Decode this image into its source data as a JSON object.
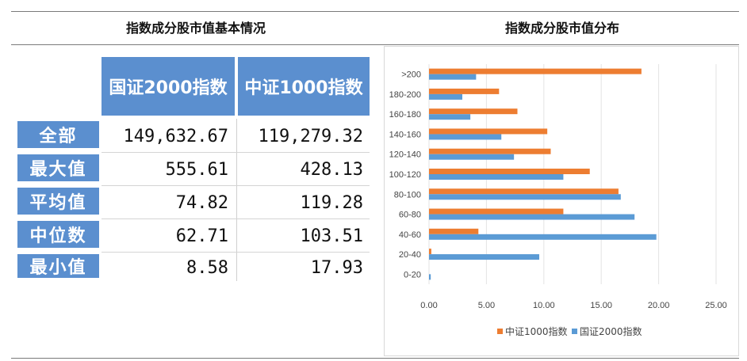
{
  "left_section": {
    "heading": "指数成分股市值基本情况",
    "columns": [
      "国证2000指数",
      "中证1000指数"
    ],
    "rows": [
      {
        "label": "全部",
        "values": [
          "149,632.67",
          "119,279.32"
        ]
      },
      {
        "label": "最大值",
        "values": [
          "555.61",
          "428.13"
        ]
      },
      {
        "label": "平均值",
        "values": [
          "74.82",
          "119.28"
        ]
      },
      {
        "label": "中位数",
        "values": [
          "62.71",
          "103.51"
        ]
      },
      {
        "label": "最小值",
        "values": [
          "8.58",
          "17.93"
        ]
      }
    ]
  },
  "right_section": {
    "heading": "指数成分股市值分布"
  },
  "chart_data": {
    "type": "bar",
    "orientation": "horizontal",
    "categories": [
      "0-20",
      "20-40",
      "40-60",
      "60-80",
      "80-100",
      "100-120",
      "120-140",
      "140-160",
      "160-180",
      "180-200",
      ">200"
    ],
    "series": [
      {
        "name": "中证1000指数",
        "color": "#ed7d31",
        "values": [
          0.0,
          0.2,
          4.3,
          11.7,
          16.5,
          14.0,
          10.6,
          10.3,
          7.7,
          6.1,
          18.5
        ]
      },
      {
        "name": "国证2000指数",
        "color": "#5b9bd5",
        "values": [
          0.15,
          9.6,
          19.8,
          17.9,
          16.7,
          11.7,
          7.4,
          6.3,
          3.6,
          2.9,
          4.1
        ]
      }
    ],
    "xlim": [
      0,
      25
    ],
    "xticks": [
      "0.00",
      "5.00",
      "10.00",
      "15.00",
      "20.00",
      "25.00"
    ],
    "grid": true,
    "legend_placement": "bottom"
  }
}
